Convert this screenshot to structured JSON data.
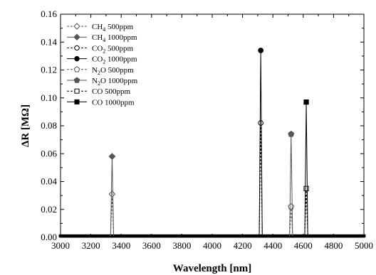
{
  "chart_data": {
    "type": "line",
    "xlabel": "Wavelength [nm]",
    "ylabel": "ΔR [MΩ]",
    "xlim": [
      3000,
      5000
    ],
    "ylim": [
      0,
      0.16
    ],
    "xticks": [
      3000,
      3200,
      3400,
      3600,
      3800,
      4000,
      4200,
      4400,
      4600,
      4800,
      5000
    ],
    "xtick_labels": [
      "3000",
      "3200",
      "3400",
      "3600",
      "3800",
      "4000",
      "4200",
      "4400",
      "4600",
      "4800",
      "5000"
    ],
    "yticks": [
      0,
      0.02,
      0.04,
      0.06,
      0.08,
      0.1,
      0.12,
      0.14,
      0.16
    ],
    "ytick_labels": [
      "0.00",
      "0.02",
      "0.04",
      "0.06",
      "0.08",
      "0.10",
      "0.12",
      "0.14",
      "0.16"
    ],
    "grid": false,
    "legend_position": "top-left",
    "series": [
      {
        "name": "CH4 500ppm",
        "label_main": "CH",
        "label_sub": "4",
        "label_rest": " 500ppm",
        "marker": "diamond-open",
        "color": "#555555",
        "dash": "dashed",
        "peak_x": 3340,
        "peak_y": 0.031,
        "baseline": 0.001
      },
      {
        "name": "CH4 1000ppm",
        "label_main": "CH",
        "label_sub": "4",
        "label_rest": " 1000ppm",
        "marker": "diamond-filled",
        "color": "#555555",
        "dash": "solid",
        "peak_x": 3340,
        "peak_y": 0.058,
        "baseline": 0.001
      },
      {
        "name": "CO2 500ppm",
        "label_main": "CO",
        "label_sub": "2",
        "label_rest": " 500ppm",
        "marker": "circle-open",
        "color": "#000000",
        "dash": "dashed",
        "peak_x": 4320,
        "peak_y": 0.082,
        "baseline": 0.001
      },
      {
        "name": "CO2 1000ppm",
        "label_main": "CO",
        "label_sub": "2",
        "label_rest": " 1000ppm",
        "marker": "circle-filled",
        "color": "#000000",
        "dash": "solid",
        "peak_x": 4320,
        "peak_y": 0.134,
        "baseline": 0.001
      },
      {
        "name": "N2O 500ppm",
        "label_main": "N",
        "label_sub": "2",
        "label_rest": "O 500ppm",
        "marker": "pentagon-open",
        "color": "#555555",
        "dash": "dashed",
        "peak_x": 4520,
        "peak_y": 0.022,
        "baseline": 0.001
      },
      {
        "name": "N2O 1000ppm",
        "label_main": "N",
        "label_sub": "2",
        "label_rest": "O 1000ppm",
        "marker": "pentagon-filled",
        "color": "#555555",
        "dash": "solid",
        "peak_x": 4520,
        "peak_y": 0.074,
        "baseline": 0.001
      },
      {
        "name": "CO 500ppm",
        "label_main": "CO 500ppm",
        "label_sub": "",
        "label_rest": "",
        "marker": "square-open",
        "color": "#000000",
        "dash": "dashed",
        "peak_x": 4620,
        "peak_y": 0.035,
        "baseline": 0.001
      },
      {
        "name": "CO 1000ppm",
        "label_main": "CO 1000ppm",
        "label_sub": "",
        "label_rest": "",
        "marker": "square-filled",
        "color": "#000000",
        "dash": "solid",
        "peak_x": 4620,
        "peak_y": 0.097,
        "baseline": 0.001
      }
    ]
  }
}
